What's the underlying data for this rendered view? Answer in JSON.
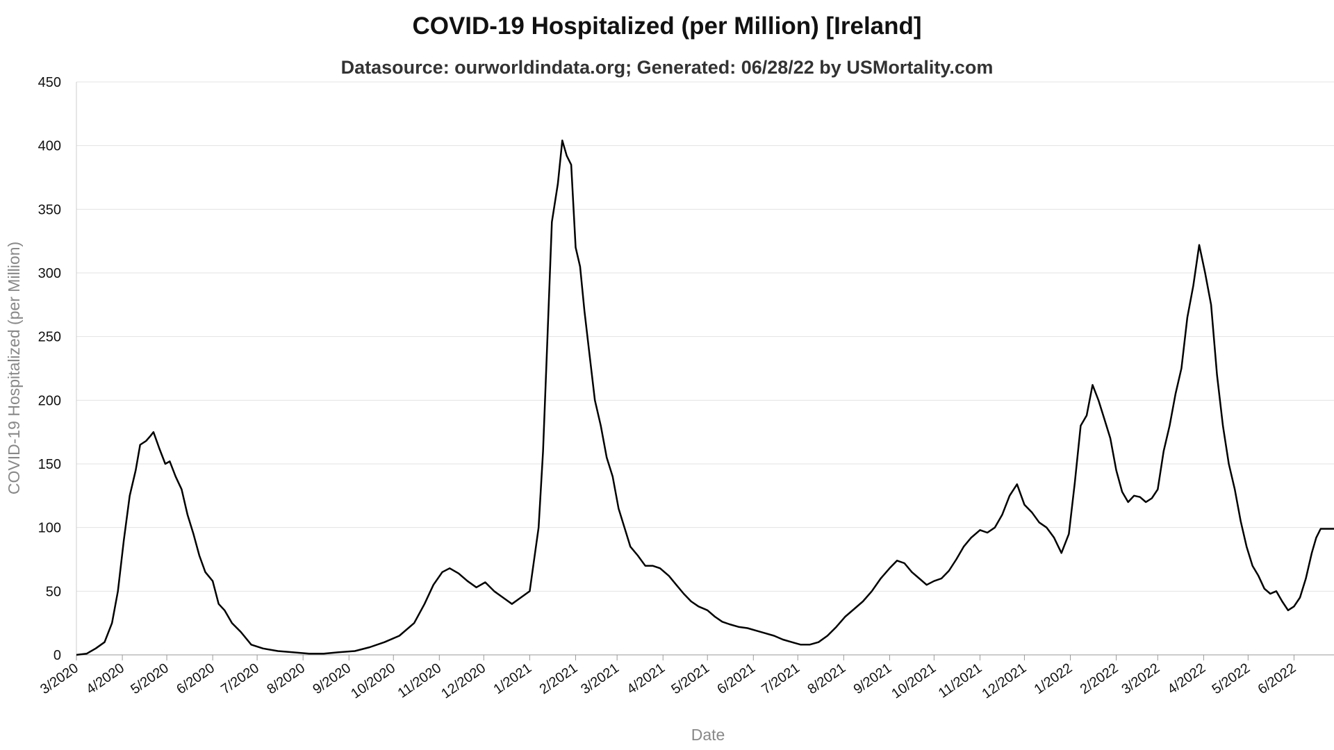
{
  "chart_data": {
    "type": "line",
    "title": "COVID-19 Hospitalized (per Million) [Ireland]",
    "subtitle": "Datasource: ourworldindata.org; Generated: 06/28/22 by USMortality.com",
    "xlabel": "Date",
    "ylabel": "COVID-19 Hospitalized (per Million)",
    "ylim": [
      0,
      450
    ],
    "yticks": [
      0,
      50,
      100,
      150,
      200,
      250,
      300,
      350,
      400,
      450
    ],
    "xticks": [
      "3/2020",
      "4/2020",
      "5/2020",
      "6/2020",
      "7/2020",
      "8/2020",
      "9/2020",
      "10/2020",
      "11/2020",
      "12/2020",
      "1/2021",
      "2/2021",
      "3/2021",
      "4/2021",
      "5/2021",
      "6/2021",
      "7/2021",
      "8/2021",
      "9/2021",
      "10/2021",
      "11/2021",
      "12/2021",
      "1/2022",
      "2/2022",
      "3/2022",
      "4/2022",
      "5/2022",
      "6/2022"
    ],
    "xrange": [
      "2020-03-01",
      "2022-06-28"
    ],
    "grid": true,
    "color": "#000000",
    "series": [
      {
        "points": [
          [
            "2020-03-01",
            0
          ],
          [
            "2020-03-08",
            1
          ],
          [
            "2020-03-14",
            5
          ],
          [
            "2020-03-20",
            10
          ],
          [
            "2020-03-25",
            25
          ],
          [
            "2020-03-29",
            50
          ],
          [
            "2020-04-02",
            90
          ],
          [
            "2020-04-06",
            125
          ],
          [
            "2020-04-10",
            145
          ],
          [
            "2020-04-13",
            165
          ],
          [
            "2020-04-17",
            168
          ],
          [
            "2020-04-20",
            172
          ],
          [
            "2020-04-22",
            175
          ],
          [
            "2020-04-26",
            162
          ],
          [
            "2020-04-30",
            150
          ],
          [
            "2020-05-03",
            152
          ],
          [
            "2020-05-07",
            140
          ],
          [
            "2020-05-11",
            130
          ],
          [
            "2020-05-15",
            110
          ],
          [
            "2020-05-19",
            95
          ],
          [
            "2020-05-23",
            78
          ],
          [
            "2020-05-27",
            65
          ],
          [
            "2020-06-01",
            58
          ],
          [
            "2020-06-05",
            40
          ],
          [
            "2020-06-09",
            35
          ],
          [
            "2020-06-14",
            25
          ],
          [
            "2020-06-20",
            18
          ],
          [
            "2020-06-27",
            8
          ],
          [
            "2020-07-05",
            5
          ],
          [
            "2020-07-15",
            3
          ],
          [
            "2020-07-25",
            2
          ],
          [
            "2020-08-05",
            1
          ],
          [
            "2020-08-15",
            1
          ],
          [
            "2020-08-25",
            2
          ],
          [
            "2020-09-05",
            3
          ],
          [
            "2020-09-15",
            6
          ],
          [
            "2020-09-25",
            10
          ],
          [
            "2020-10-05",
            15
          ],
          [
            "2020-10-15",
            25
          ],
          [
            "2020-10-22",
            40
          ],
          [
            "2020-10-28",
            55
          ],
          [
            "2020-11-03",
            65
          ],
          [
            "2020-11-08",
            68
          ],
          [
            "2020-11-14",
            64
          ],
          [
            "2020-11-20",
            58
          ],
          [
            "2020-11-26",
            53
          ],
          [
            "2020-12-02",
            57
          ],
          [
            "2020-12-08",
            50
          ],
          [
            "2020-12-14",
            45
          ],
          [
            "2020-12-20",
            40
          ],
          [
            "2020-12-26",
            45
          ],
          [
            "2021-01-01",
            50
          ],
          [
            "2021-01-04",
            75
          ],
          [
            "2021-01-07",
            100
          ],
          [
            "2021-01-10",
            160
          ],
          [
            "2021-01-13",
            250
          ],
          [
            "2021-01-16",
            340
          ],
          [
            "2021-01-20",
            370
          ],
          [
            "2021-01-23",
            404
          ],
          [
            "2021-01-26",
            392
          ],
          [
            "2021-01-29",
            385
          ],
          [
            "2021-02-01",
            320
          ],
          [
            "2021-02-04",
            305
          ],
          [
            "2021-02-07",
            270
          ],
          [
            "2021-02-10",
            240
          ],
          [
            "2021-02-14",
            200
          ],
          [
            "2021-02-18",
            180
          ],
          [
            "2021-02-22",
            155
          ],
          [
            "2021-02-26",
            140
          ],
          [
            "2021-03-02",
            115
          ],
          [
            "2021-03-06",
            100
          ],
          [
            "2021-03-10",
            85
          ],
          [
            "2021-03-15",
            78
          ],
          [
            "2021-03-20",
            70
          ],
          [
            "2021-03-25",
            70
          ],
          [
            "2021-03-30",
            68
          ],
          [
            "2021-04-05",
            62
          ],
          [
            "2021-04-10",
            55
          ],
          [
            "2021-04-15",
            48
          ],
          [
            "2021-04-20",
            42
          ],
          [
            "2021-04-25",
            38
          ],
          [
            "2021-05-01",
            35
          ],
          [
            "2021-05-06",
            30
          ],
          [
            "2021-05-11",
            26
          ],
          [
            "2021-05-16",
            24
          ],
          [
            "2021-05-22",
            22
          ],
          [
            "2021-05-28",
            21
          ],
          [
            "2021-06-03",
            19
          ],
          [
            "2021-06-09",
            17
          ],
          [
            "2021-06-15",
            15
          ],
          [
            "2021-06-21",
            12
          ],
          [
            "2021-06-27",
            10
          ],
          [
            "2021-07-03",
            8
          ],
          [
            "2021-07-09",
            8
          ],
          [
            "2021-07-15",
            10
          ],
          [
            "2021-07-21",
            15
          ],
          [
            "2021-07-27",
            22
          ],
          [
            "2021-08-02",
            30
          ],
          [
            "2021-08-08",
            36
          ],
          [
            "2021-08-14",
            42
          ],
          [
            "2021-08-20",
            50
          ],
          [
            "2021-08-26",
            60
          ],
          [
            "2021-09-01",
            68
          ],
          [
            "2021-09-06",
            74
          ],
          [
            "2021-09-11",
            72
          ],
          [
            "2021-09-16",
            65
          ],
          [
            "2021-09-21",
            60
          ],
          [
            "2021-09-26",
            55
          ],
          [
            "2021-10-01",
            58
          ],
          [
            "2021-10-06",
            60
          ],
          [
            "2021-10-11",
            66
          ],
          [
            "2021-10-16",
            75
          ],
          [
            "2021-10-21",
            85
          ],
          [
            "2021-10-26",
            92
          ],
          [
            "2021-11-01",
            98
          ],
          [
            "2021-11-06",
            96
          ],
          [
            "2021-11-11",
            100
          ],
          [
            "2021-11-16",
            110
          ],
          [
            "2021-11-21",
            125
          ],
          [
            "2021-11-26",
            134
          ],
          [
            "2021-12-01",
            118
          ],
          [
            "2021-12-06",
            112
          ],
          [
            "2021-12-11",
            104
          ],
          [
            "2021-12-16",
            100
          ],
          [
            "2021-12-21",
            92
          ],
          [
            "2021-12-26",
            80
          ],
          [
            "2021-12-31",
            95
          ],
          [
            "2022-01-04",
            135
          ],
          [
            "2022-01-08",
            180
          ],
          [
            "2022-01-12",
            188
          ],
          [
            "2022-01-16",
            212
          ],
          [
            "2022-01-20",
            200
          ],
          [
            "2022-01-24",
            185
          ],
          [
            "2022-01-28",
            170
          ],
          [
            "2022-02-01",
            145
          ],
          [
            "2022-02-05",
            128
          ],
          [
            "2022-02-09",
            120
          ],
          [
            "2022-02-13",
            125
          ],
          [
            "2022-02-17",
            124
          ],
          [
            "2022-02-21",
            120
          ],
          [
            "2022-02-25",
            123
          ],
          [
            "2022-03-01",
            130
          ],
          [
            "2022-03-05",
            160
          ],
          [
            "2022-03-09",
            180
          ],
          [
            "2022-03-13",
            205
          ],
          [
            "2022-03-17",
            225
          ],
          [
            "2022-03-21",
            265
          ],
          [
            "2022-03-25",
            290
          ],
          [
            "2022-03-29",
            322
          ],
          [
            "2022-04-02",
            300
          ],
          [
            "2022-04-06",
            275
          ],
          [
            "2022-04-10",
            220
          ],
          [
            "2022-04-14",
            180
          ],
          [
            "2022-04-18",
            150
          ],
          [
            "2022-04-22",
            130
          ],
          [
            "2022-04-26",
            105
          ],
          [
            "2022-04-30",
            85
          ],
          [
            "2022-05-04",
            70
          ],
          [
            "2022-05-08",
            62
          ],
          [
            "2022-05-12",
            52
          ],
          [
            "2022-05-16",
            48
          ],
          [
            "2022-05-20",
            50
          ],
          [
            "2022-05-24",
            42
          ],
          [
            "2022-05-28",
            35
          ],
          [
            "2022-06-01",
            38
          ],
          [
            "2022-06-05",
            45
          ],
          [
            "2022-06-09",
            60
          ],
          [
            "2022-06-13",
            80
          ],
          [
            "2022-06-16",
            92
          ],
          [
            "2022-06-19",
            99
          ],
          [
            "2022-06-28",
            99
          ]
        ]
      }
    ]
  }
}
